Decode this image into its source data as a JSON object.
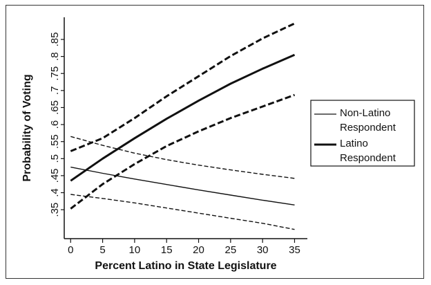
{
  "chart_data": {
    "type": "line",
    "xlabel": "Percent Latino in State Legislature",
    "ylabel": "Probability of Voting",
    "xlim": [
      -1,
      37
    ],
    "ylim": [
      0.265,
      0.915
    ],
    "x_ticks": [
      0,
      5,
      10,
      15,
      20,
      25,
      30,
      35
    ],
    "x_tick_labels": [
      "0",
      "5",
      "10",
      "15",
      "20",
      "25",
      "30",
      "35"
    ],
    "y_ticks": [
      0.35,
      0.4,
      0.45,
      0.5,
      0.55,
      0.6,
      0.65,
      0.7,
      0.75,
      0.8,
      0.85
    ],
    "y_tick_labels": [
      ".35",
      ".4",
      ".45",
      ".5",
      ".55",
      ".6",
      ".65",
      ".7",
      ".75",
      ".8",
      ".85"
    ],
    "x": [
      0,
      5,
      10,
      15,
      20,
      25,
      30,
      35
    ],
    "series": [
      {
        "name": "Non-Latino Respondent",
        "group": "non-latino",
        "role": "estimate",
        "values": [
          0.475,
          0.457,
          0.44,
          0.424,
          0.408,
          0.393,
          0.378,
          0.364
        ]
      },
      {
        "group": "non-latino",
        "role": "upper",
        "values": [
          0.565,
          0.539,
          0.516,
          0.497,
          0.481,
          0.467,
          0.454,
          0.442
        ]
      },
      {
        "group": "non-latino",
        "role": "lower",
        "values": [
          0.395,
          0.383,
          0.37,
          0.355,
          0.34,
          0.325,
          0.31,
          0.292
        ]
      },
      {
        "name": "Latino Respondent",
        "group": "latino",
        "role": "estimate",
        "values": [
          0.435,
          0.5,
          0.56,
          0.617,
          0.67,
          0.72,
          0.764,
          0.805
        ]
      },
      {
        "group": "latino",
        "role": "upper",
        "values": [
          0.522,
          0.56,
          0.619,
          0.683,
          0.742,
          0.801,
          0.853,
          0.897
        ]
      },
      {
        "group": "latino",
        "role": "lower",
        "values": [
          0.353,
          0.425,
          0.484,
          0.537,
          0.58,
          0.619,
          0.653,
          0.687
        ]
      }
    ],
    "legend": {
      "placement": "right",
      "entries": [
        {
          "label_lines": [
            "Non-Latino",
            "Respondent"
          ],
          "style": "thin"
        },
        {
          "label_lines": [
            "Latino",
            "Respondent"
          ],
          "style": "thick"
        }
      ]
    },
    "grid": false,
    "colors": {
      "line": "#111111",
      "background": "#ffffff"
    }
  }
}
